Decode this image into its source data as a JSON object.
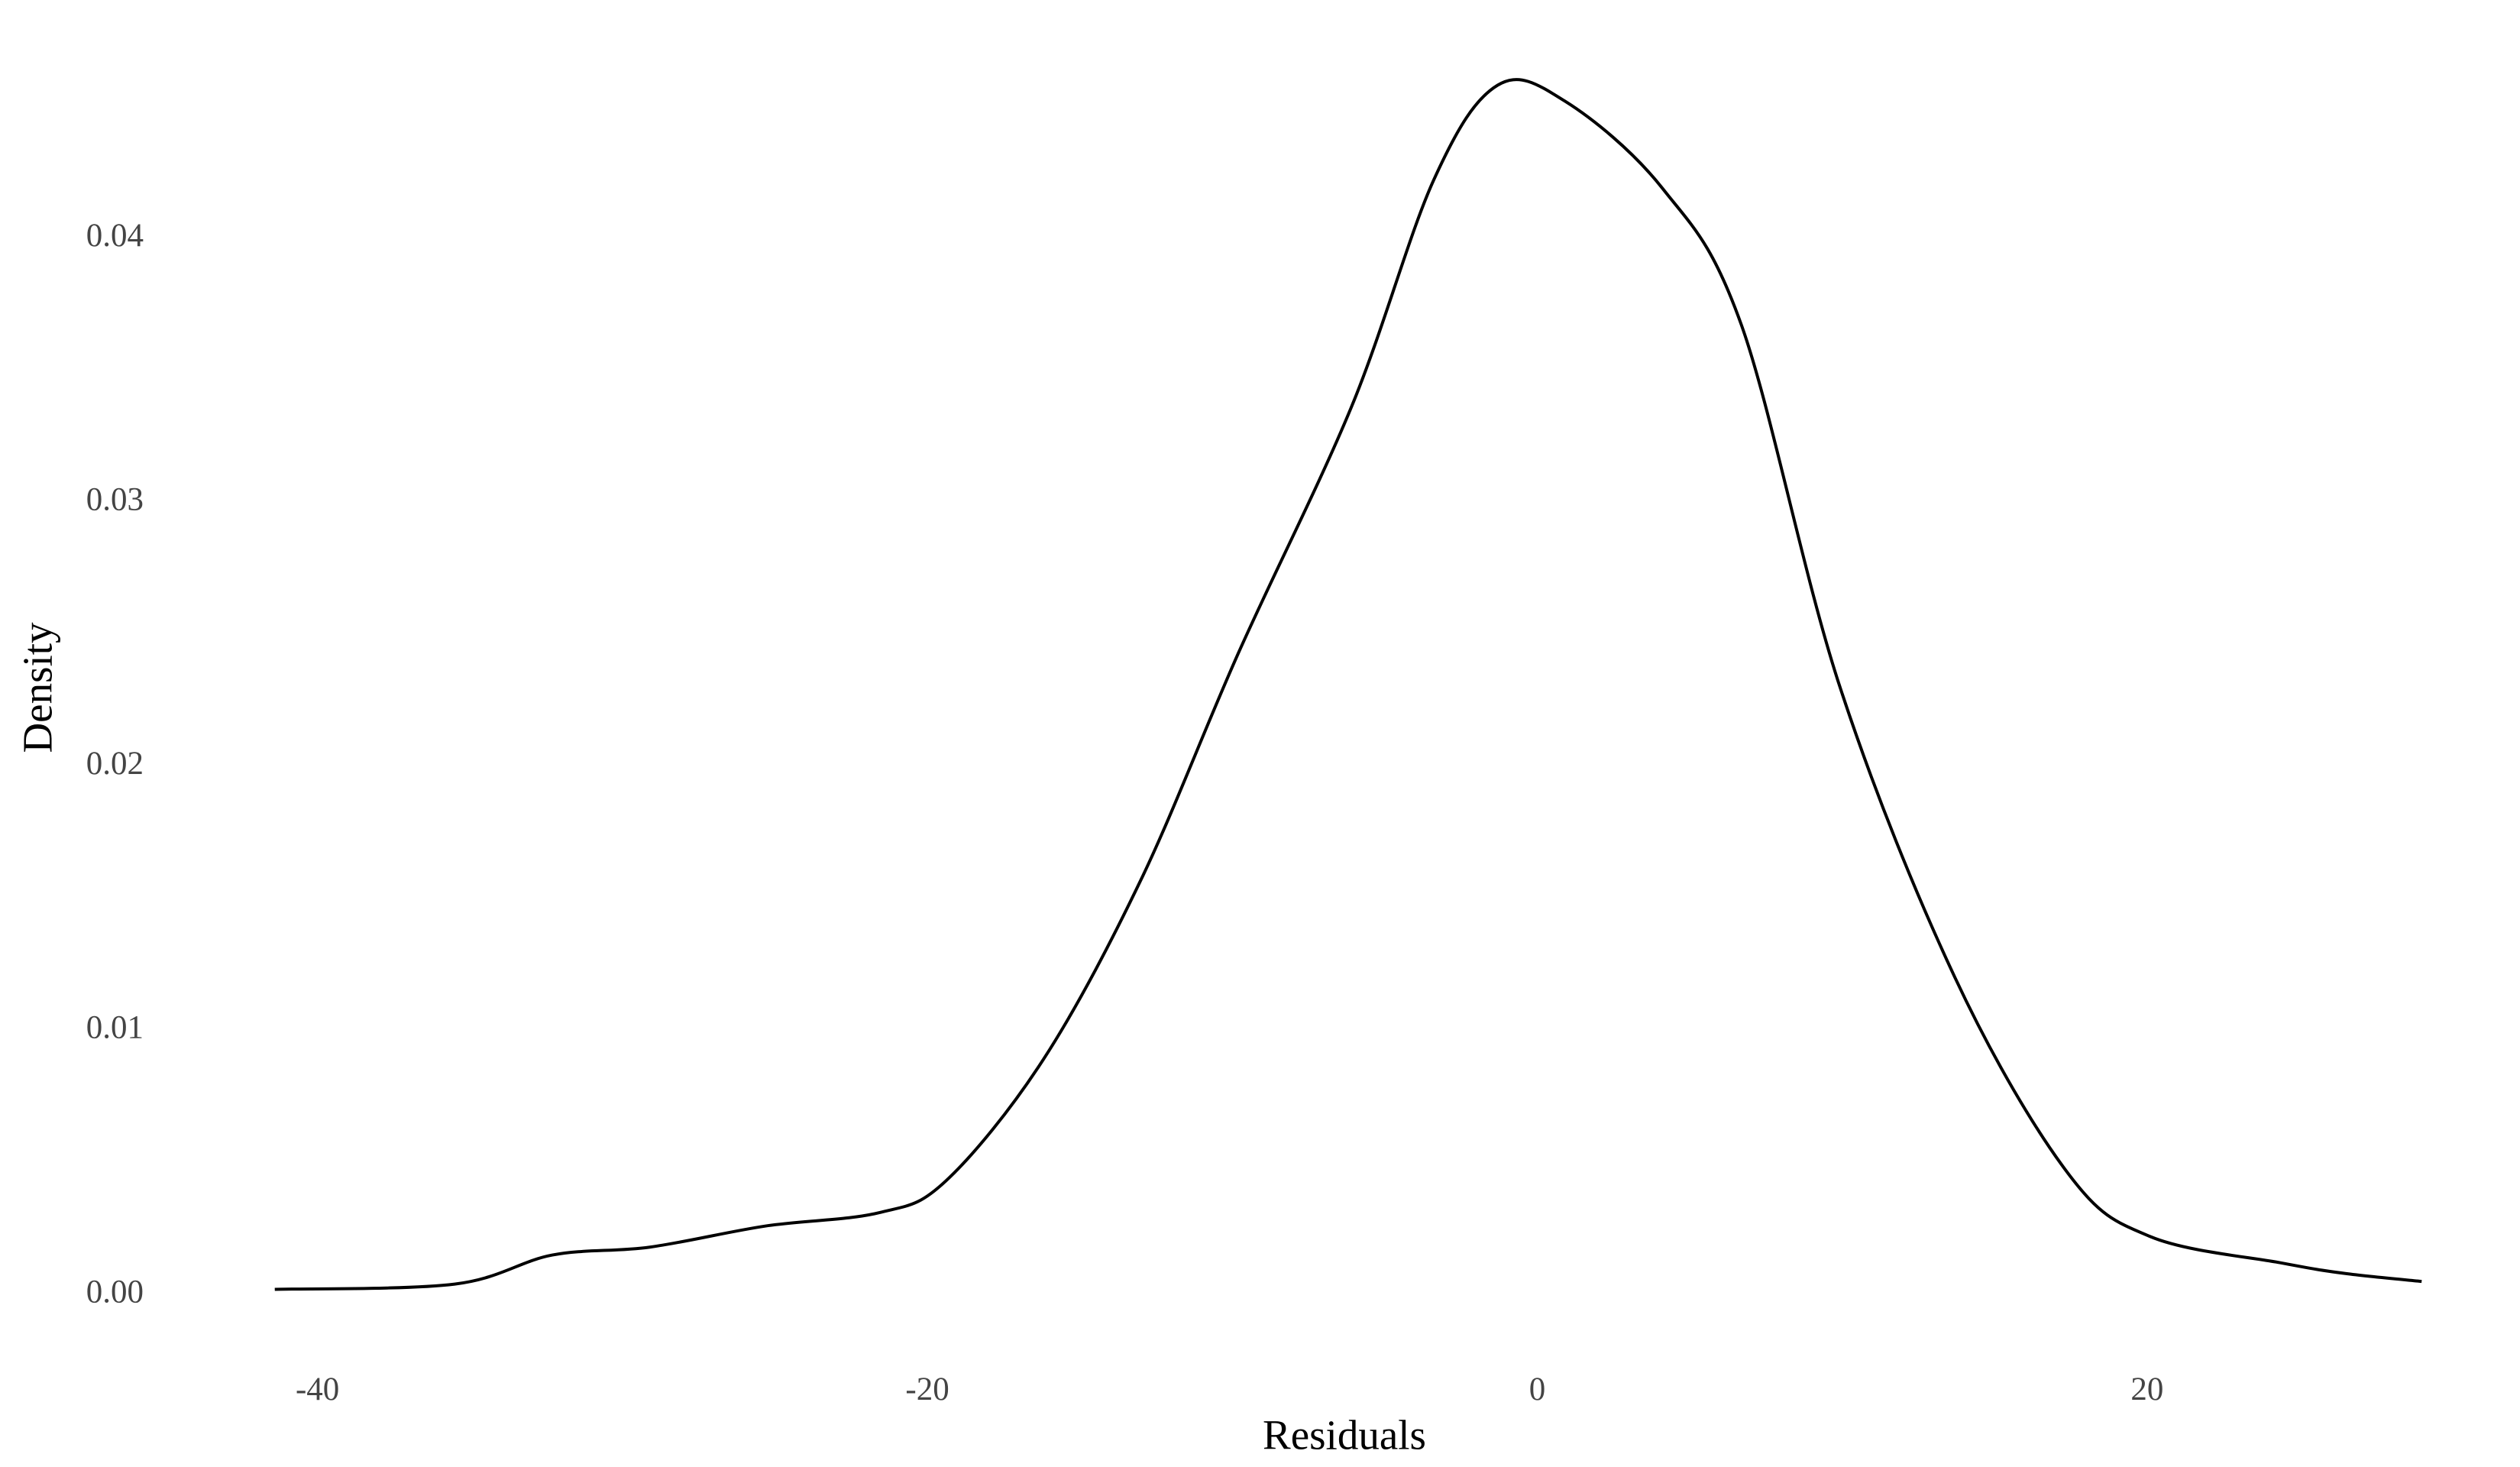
{
  "chart_data": {
    "type": "line",
    "x_label": "Residuals",
    "y_label": "Density",
    "x": [
      -41.4,
      -35.5,
      -32.3,
      -29.1,
      -25.3,
      -21.6,
      -19.4,
      -16.2,
      -13.0,
      -9.8,
      -6.1,
      -3.4,
      -1.3,
      0.9,
      4.1,
      6.7,
      9.9,
      13.7,
      17.4,
      20.1,
      24.4,
      26.5,
      29.0
    ],
    "series": [
      {
        "color": "#000000",
        "values": [
          0.0002,
          0.0004,
          0.0015,
          0.0018,
          0.0026,
          0.0031,
          0.0043,
          0.0089,
          0.0157,
          0.0243,
          0.0336,
          0.0422,
          0.0458,
          0.0452,
          0.0419,
          0.0367,
          0.0231,
          0.012,
          0.0046,
          0.0022,
          0.0012,
          0.0008,
          0.0005
        ]
      }
    ],
    "xlim": [
      -44.9,
      32.0
    ],
    "xticks": [
      -40,
      -20,
      0,
      20
    ],
    "ylim": [
      -0.0021,
      0.0481
    ],
    "yticks": [
      {
        "value": 0,
        "label": "0.00"
      },
      {
        "value": 0.01,
        "label": "0.01"
      },
      {
        "value": 0.02,
        "label": "0.02"
      },
      {
        "value": 0.03,
        "label": "0.03"
      },
      {
        "value": 0.04,
        "label": "0.04"
      }
    ],
    "grid": false
  }
}
